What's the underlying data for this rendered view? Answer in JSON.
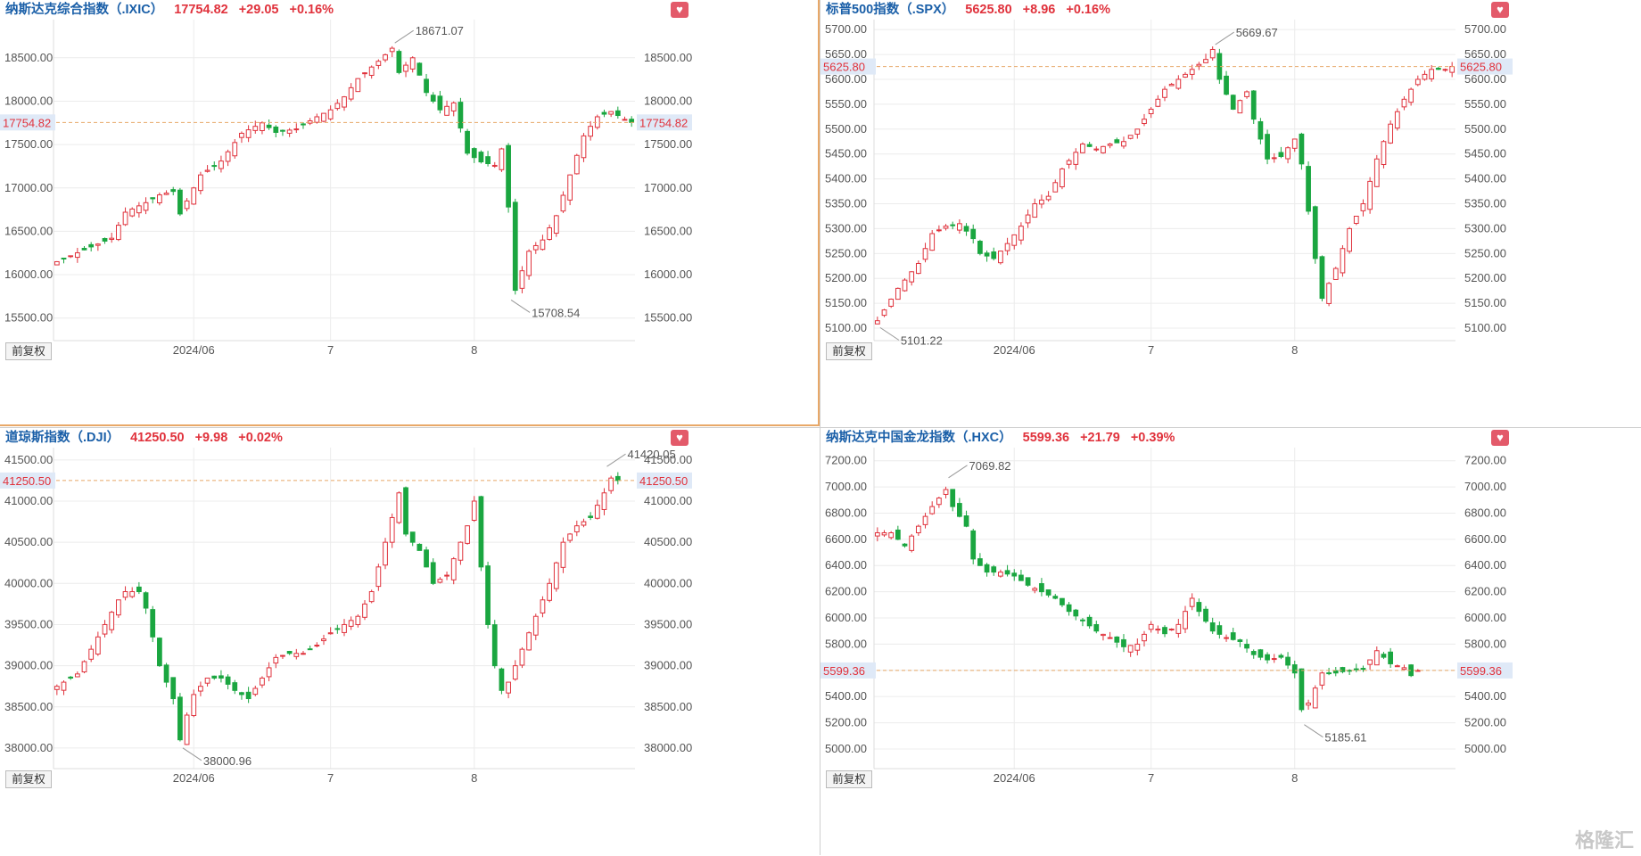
{
  "watermark": "格隆汇",
  "adjust_label": "前复权",
  "colors": {
    "up": "#e0323c",
    "down": "#1aa640",
    "grid": "#ececec",
    "current": "#e8a868"
  },
  "chart_data": [
    {
      "type": "candlestick",
      "name": "纳斯达克综合指数（.IXIC）",
      "price": "17754.82",
      "change": "+29.05",
      "pct": "+0.16%",
      "current": 17754.82,
      "y_ticks": [
        15500,
        16000,
        16500,
        17000,
        17500,
        18000,
        18500
      ],
      "ylim": [
        15240,
        18940
      ],
      "x_labels": [
        {
          "i": 20,
          "t": "2024/06"
        },
        {
          "i": 40,
          "t": "7"
        },
        {
          "i": 61,
          "t": "8"
        }
      ],
      "hi_ann": {
        "i": 49,
        "text": "18671.07",
        "value": 18671.07
      },
      "lo_ann": {
        "i": 66,
        "text": "15708.54",
        "value": 15708.54
      },
      "anchors": [
        [
          0,
          16150
        ],
        [
          5,
          16320
        ],
        [
          8,
          16420
        ],
        [
          10,
          16720
        ],
        [
          13,
          16830
        ],
        [
          15,
          16920
        ],
        [
          17,
          16960
        ],
        [
          18,
          16700
        ],
        [
          21,
          17150
        ],
        [
          24,
          17310
        ],
        [
          27,
          17630
        ],
        [
          30,
          17750
        ],
        [
          32,
          17640
        ],
        [
          35,
          17680
        ],
        [
          38,
          17820
        ],
        [
          40,
          17900
        ],
        [
          42,
          18050
        ],
        [
          44,
          18260
        ],
        [
          47,
          18460
        ],
        [
          49,
          18610
        ],
        [
          50,
          18330
        ],
        [
          52,
          18500
        ],
        [
          54,
          18100
        ],
        [
          56,
          17900
        ],
        [
          58,
          17980
        ],
        [
          60,
          17400
        ],
        [
          62,
          17300
        ],
        [
          64,
          17260
        ],
        [
          65,
          17450
        ],
        [
          66,
          16780
        ],
        [
          67,
          15820
        ],
        [
          69,
          16270
        ],
        [
          71,
          16400
        ],
        [
          73,
          16680
        ],
        [
          75,
          17150
        ],
        [
          77,
          17600
        ],
        [
          79,
          17820
        ],
        [
          81,
          17880
        ],
        [
          83,
          17790
        ],
        [
          84,
          17754.82
        ]
      ]
    },
    {
      "type": "candlestick",
      "name": "标普500指数（.SPX）",
      "price": "5625.80",
      "change": "+8.96",
      "pct": "+0.16%",
      "current": 5625.8,
      "y_ticks": [
        5100,
        5150,
        5200,
        5250,
        5300,
        5350,
        5400,
        5450,
        5500,
        5550,
        5600,
        5650,
        5700
      ],
      "ylim": [
        5075,
        5720
      ],
      "x_labels": [
        {
          "i": 20,
          "t": "2024/06"
        },
        {
          "i": 40,
          "t": "7"
        },
        {
          "i": 61,
          "t": "8"
        }
      ],
      "hi_ann": {
        "i": 49,
        "text": "5669.67",
        "value": 5669.67
      },
      "lo_ann": {
        "i": 0,
        "text": "5101.22",
        "value": 5101.22
      },
      "anchors": [
        [
          0,
          5115
        ],
        [
          3,
          5180
        ],
        [
          6,
          5230
        ],
        [
          8,
          5290
        ],
        [
          10,
          5305
        ],
        [
          12,
          5310
        ],
        [
          14,
          5280
        ],
        [
          15,
          5250
        ],
        [
          17,
          5240
        ],
        [
          19,
          5270
        ],
        [
          21,
          5305
        ],
        [
          23,
          5350
        ],
        [
          25,
          5365
        ],
        [
          27,
          5420
        ],
        [
          30,
          5470
        ],
        [
          32,
          5460
        ],
        [
          34,
          5470
        ],
        [
          36,
          5475
        ],
        [
          38,
          5500
        ],
        [
          40,
          5540
        ],
        [
          42,
          5580
        ],
        [
          44,
          5600
        ],
        [
          46,
          5620
        ],
        [
          48,
          5640
        ],
        [
          49,
          5660
        ],
        [
          50,
          5600
        ],
        [
          52,
          5540
        ],
        [
          54,
          5575
        ],
        [
          55,
          5520
        ],
        [
          57,
          5440
        ],
        [
          59,
          5445
        ],
        [
          61,
          5480
        ],
        [
          62,
          5430
        ],
        [
          64,
          5240
        ],
        [
          65,
          5160
        ],
        [
          67,
          5220
        ],
        [
          69,
          5300
        ],
        [
          71,
          5350
        ],
        [
          73,
          5440
        ],
        [
          75,
          5510
        ],
        [
          77,
          5560
        ],
        [
          79,
          5600
        ],
        [
          81,
          5620
        ],
        [
          83,
          5620
        ],
        [
          84,
          5625.8
        ]
      ]
    },
    {
      "type": "candlestick",
      "name": "道琼斯指数（.DJI）",
      "price": "41250.50",
      "change": "+9.98",
      "pct": "+0.02%",
      "current": 41250.5,
      "y_ticks": [
        38000,
        38500,
        39000,
        39500,
        40000,
        40500,
        41000,
        41500
      ],
      "ylim": [
        37750,
        41650
      ],
      "x_labels": [
        {
          "i": 20,
          "t": "2024/06"
        },
        {
          "i": 40,
          "t": "7"
        },
        {
          "i": 61,
          "t": "8"
        }
      ],
      "hi_ann": {
        "i": 80,
        "text": "41420.05",
        "value": 41420.05
      },
      "lo_ann": {
        "i": 18,
        "text": "38000.96",
        "value": 38000.96
      },
      "anchors": [
        [
          0,
          38750
        ],
        [
          3,
          38900
        ],
        [
          5,
          39200
        ],
        [
          7,
          39500
        ],
        [
          9,
          39800
        ],
        [
          10,
          39900
        ],
        [
          12,
          39900
        ],
        [
          13,
          39700
        ],
        [
          14,
          39350
        ],
        [
          15,
          39000
        ],
        [
          17,
          38600
        ],
        [
          18,
          38100
        ],
        [
          19,
          38400
        ],
        [
          20,
          38650
        ],
        [
          22,
          38850
        ],
        [
          24,
          38850
        ],
        [
          26,
          38700
        ],
        [
          28,
          38600
        ],
        [
          30,
          38850
        ],
        [
          32,
          39100
        ],
        [
          34,
          39150
        ],
        [
          36,
          39150
        ],
        [
          38,
          39250
        ],
        [
          40,
          39400
        ],
        [
          42,
          39500
        ],
        [
          44,
          39600
        ],
        [
          46,
          39900
        ],
        [
          47,
          40200
        ],
        [
          49,
          40800
        ],
        [
          50,
          41100
        ],
        [
          51,
          40600
        ],
        [
          53,
          40400
        ],
        [
          55,
          40000
        ],
        [
          57,
          40100
        ],
        [
          59,
          40500
        ],
        [
          60,
          40700
        ],
        [
          61,
          41000
        ],
        [
          62,
          40200
        ],
        [
          63,
          39500
        ],
        [
          64,
          39000
        ],
        [
          65,
          38700
        ],
        [
          66,
          38800
        ],
        [
          68,
          39200
        ],
        [
          70,
          39600
        ],
        [
          72,
          40000
        ],
        [
          74,
          40500
        ],
        [
          76,
          40700
        ],
        [
          78,
          40800
        ],
        [
          80,
          41100
        ],
        [
          81,
          41280
        ],
        [
          82,
          41250.5
        ]
      ]
    },
    {
      "type": "candlestick",
      "name": "纳斯达克中国金龙指数（.HXC）",
      "price": "5599.36",
      "change": "+21.79",
      "pct": "+0.39%",
      "current": 5599.36,
      "y_ticks": [
        5000,
        5200,
        5400,
        5600,
        5800,
        6000,
        6200,
        6400,
        6600,
        6800,
        7000,
        7200
      ],
      "ylim": [
        4850,
        7300
      ],
      "x_labels": [
        {
          "i": 20,
          "t": "2024/06"
        },
        {
          "i": 40,
          "t": "7"
        },
        {
          "i": 61,
          "t": "8"
        }
      ],
      "hi_ann": {
        "i": 10,
        "text": "7069.82",
        "value": 7069.82
      },
      "lo_ann": {
        "i": 62,
        "text": "5185.61",
        "value": 5185.61
      },
      "anchors": [
        [
          0,
          6650
        ],
        [
          2,
          6650
        ],
        [
          4,
          6550
        ],
        [
          6,
          6700
        ],
        [
          8,
          6850
        ],
        [
          10,
          6980
        ],
        [
          11,
          6850
        ],
        [
          13,
          6700
        ],
        [
          14,
          6450
        ],
        [
          16,
          6350
        ],
        [
          18,
          6350
        ],
        [
          20,
          6320
        ],
        [
          22,
          6250
        ],
        [
          24,
          6200
        ],
        [
          26,
          6150
        ],
        [
          28,
          6050
        ],
        [
          30,
          5980
        ],
        [
          32,
          5900
        ],
        [
          34,
          5850
        ],
        [
          36,
          5780
        ],
        [
          38,
          5800
        ],
        [
          40,
          5950
        ],
        [
          42,
          5880
        ],
        [
          44,
          5950
        ],
        [
          46,
          6150
        ],
        [
          47,
          6050
        ],
        [
          49,
          5900
        ],
        [
          51,
          5850
        ],
        [
          53,
          5820
        ],
        [
          55,
          5720
        ],
        [
          57,
          5680
        ],
        [
          59,
          5700
        ],
        [
          61,
          5580
        ],
        [
          62,
          5300
        ],
        [
          63,
          5350
        ],
        [
          65,
          5580
        ],
        [
          67,
          5580
        ],
        [
          69,
          5600
        ],
        [
          71,
          5610
        ],
        [
          73,
          5750
        ],
        [
          75,
          5650
        ],
        [
          77,
          5620
        ],
        [
          78,
          5560
        ],
        [
          79,
          5599.36
        ]
      ]
    }
  ]
}
